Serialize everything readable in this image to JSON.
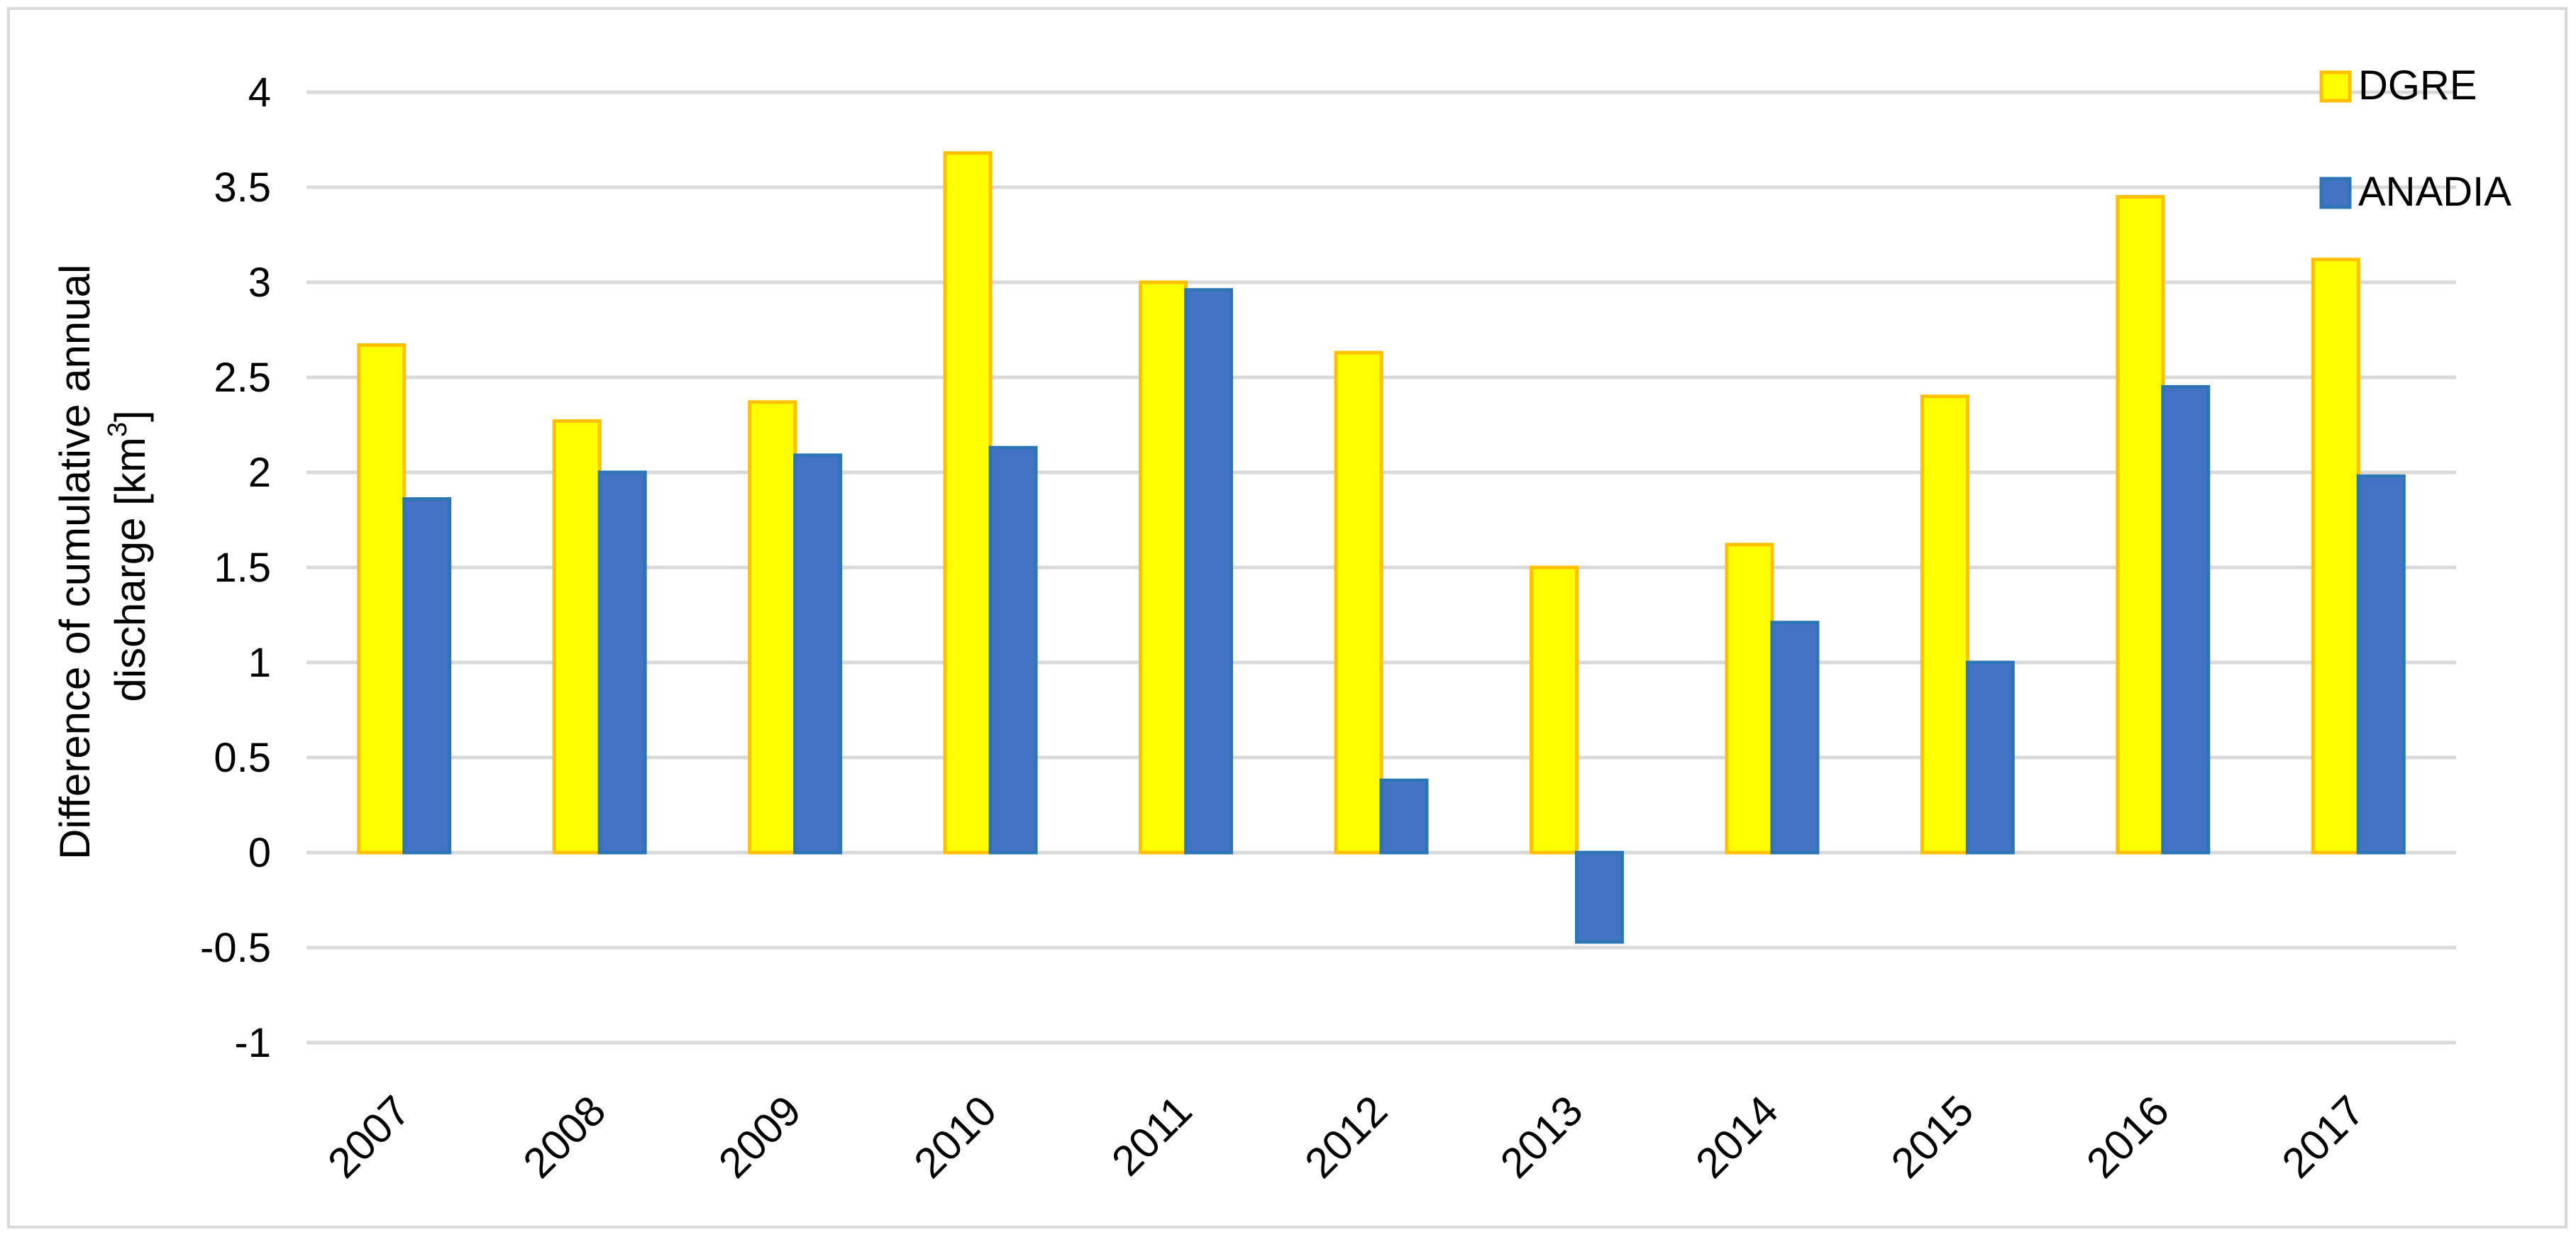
{
  "chart_data": {
    "type": "bar",
    "categories": [
      "2007",
      "2008",
      "2009",
      "2010",
      "2011",
      "2012",
      "2013",
      "2014",
      "2015",
      "2016",
      "2017"
    ],
    "series": [
      {
        "name": "DGRE",
        "color": "#ffff00",
        "edge_color": "#ffc000",
        "values": [
          2.67,
          2.27,
          2.37,
          3.68,
          3.0,
          2.63,
          1.5,
          1.62,
          2.4,
          3.45,
          3.12
        ]
      },
      {
        "name": "ANADIA",
        "color": "#4472c4",
        "edge_color": "#2e75b6",
        "values": [
          1.86,
          2.0,
          2.09,
          2.13,
          2.96,
          0.38,
          -0.47,
          1.21,
          1.0,
          2.45,
          1.98
        ]
      }
    ],
    "title": "",
    "xlabel": "",
    "ylabel_line1": "Difference of cumulative annual",
    "ylabel_line2": "discharge [km",
    "ylabel_sup": "3",
    "ylabel_end": "]",
    "ylim": [
      -1,
      4
    ],
    "yticks": [
      4,
      3.5,
      3,
      2.5,
      2,
      1.5,
      1,
      0.5,
      0,
      -0.5,
      -1
    ],
    "ytick_labels": [
      "4",
      "3.5",
      "3",
      "2.5",
      "2",
      "1.5",
      "1",
      "0.5",
      "0",
      "-0.5",
      "-1"
    ],
    "grid": true,
    "legend_position": "top-right"
  }
}
